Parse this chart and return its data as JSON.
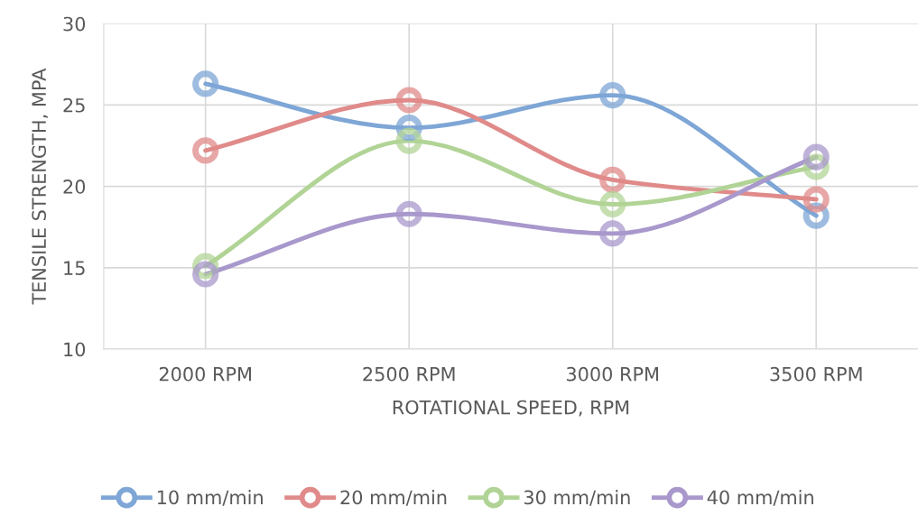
{
  "chart_data": {
    "type": "line",
    "xlabel": "ROTATIONAL SPEED, RPM",
    "ylabel": "TENSILE STRENGTH, MPA",
    "categories": [
      "2000 RPM",
      "2500 RPM",
      "3000 RPM",
      "3500 RPM"
    ],
    "series": [
      {
        "name": "10 mm/min",
        "color": "#7ea6d6",
        "values": [
          26.3,
          23.6,
          25.6,
          18.2
        ]
      },
      {
        "name": "20 mm/min",
        "color": "#e08a8a",
        "values": [
          22.2,
          25.3,
          20.4,
          19.2
        ]
      },
      {
        "name": "30 mm/min",
        "color": "#b1d496",
        "values": [
          15.1,
          22.8,
          18.9,
          21.2
        ]
      },
      {
        "name": "40 mm/min",
        "color": "#a898cc",
        "values": [
          14.6,
          18.3,
          17.1,
          21.8
        ]
      }
    ],
    "ylim": [
      10,
      30
    ],
    "yticks": [
      10,
      15,
      20,
      25,
      30
    ],
    "grid": true,
    "legend": "bottom",
    "marker": "circle",
    "line_style": "solid"
  }
}
